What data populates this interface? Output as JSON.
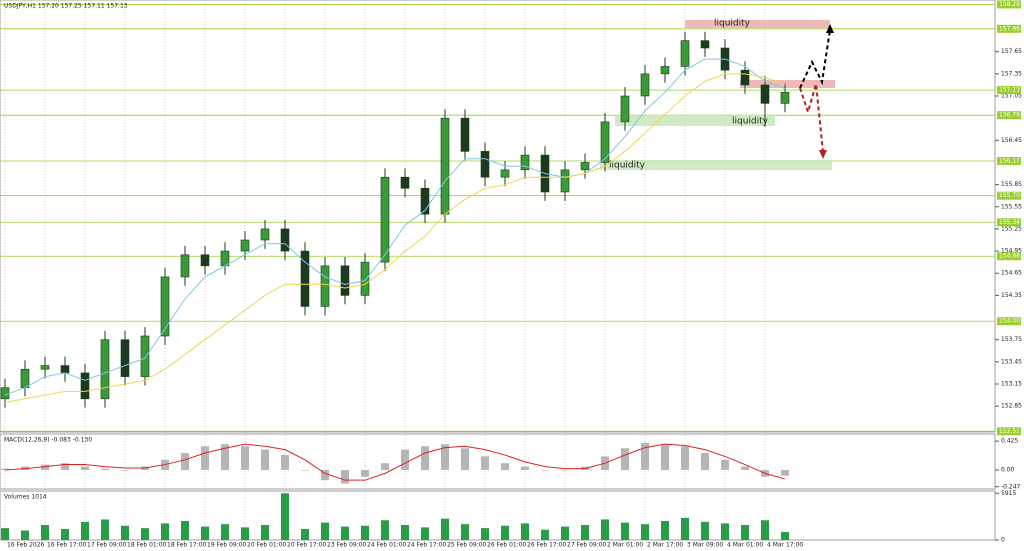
{
  "header": "USDJPY,H1  157.20 157.25 157.11 157.13",
  "zones": [
    "liquidity",
    "liquidity",
    "liquidity"
  ],
  "chart_data": [
    {
      "type": "candlestick",
      "categories": [
        "16 Feb 2026",
        null,
        "16 Feb 17:00",
        null,
        "17 Feb 09:00",
        null,
        "18 Feb 01:00",
        null,
        "18 Feb 17:00",
        null,
        "19 Feb 09:00",
        null,
        "20 Feb 01:00",
        null,
        "20 Feb 17:00",
        null,
        "23 Feb 09:00",
        null,
        "24 Feb 01:00",
        null,
        "24 Feb 17:00",
        null,
        "25 Feb 09:00",
        null,
        "26 Feb 01:00",
        null,
        "26 Feb 17:00",
        null,
        "27 Feb 09:00",
        null,
        "2 Mar 01:00",
        null,
        "2 Mar 17:00",
        null,
        "3 Mar 09:00",
        null,
        "4 Mar 01:00",
        null,
        "4 Mar 17:00",
        null
      ],
      "open": [
        152.95,
        153.1,
        153.35,
        153.4,
        153.3,
        152.95,
        153.75,
        153.25,
        153.8,
        154.6,
        154.9,
        154.75,
        154.95,
        155.1,
        155.25,
        154.95,
        154.2,
        154.75,
        154.35,
        154.8,
        155.95,
        155.8,
        155.45,
        156.75,
        156.3,
        155.95,
        156.05,
        156.25,
        155.75,
        156.05,
        156.15,
        156.7,
        157.05,
        157.35,
        157.45,
        157.8,
        157.7,
        157.4,
        157.2,
        156.95
      ],
      "high": [
        153.22,
        153.47,
        153.52,
        153.52,
        153.42,
        153.87,
        153.87,
        153.92,
        154.72,
        155.02,
        155.02,
        155.07,
        155.22,
        155.37,
        155.37,
        155.07,
        154.87,
        154.87,
        154.92,
        156.07,
        156.07,
        155.92,
        156.87,
        156.87,
        156.42,
        156.17,
        156.37,
        156.37,
        156.17,
        156.27,
        156.82,
        157.17,
        157.47,
        157.57,
        157.92,
        157.92,
        157.82,
        157.52,
        157.32,
        157.22
      ],
      "low": [
        152.83,
        152.98,
        153.23,
        153.18,
        152.83,
        152.83,
        153.13,
        153.13,
        153.68,
        154.48,
        154.63,
        154.63,
        154.83,
        154.98,
        154.83,
        154.08,
        154.08,
        154.23,
        154.23,
        154.68,
        155.68,
        155.33,
        155.33,
        156.18,
        155.83,
        155.83,
        155.93,
        155.63,
        155.63,
        155.93,
        156.03,
        156.58,
        156.93,
        157.23,
        157.33,
        157.58,
        157.28,
        157.08,
        156.63,
        156.83
      ],
      "close": [
        153.1,
        153.35,
        153.4,
        153.3,
        152.95,
        153.75,
        153.25,
        153.8,
        154.6,
        154.9,
        154.75,
        154.95,
        155.1,
        155.25,
        154.95,
        154.2,
        154.75,
        154.35,
        154.8,
        155.95,
        155.8,
        155.45,
        156.75,
        156.3,
        155.95,
        156.05,
        156.25,
        155.75,
        156.05,
        156.15,
        156.7,
        157.05,
        157.35,
        157.45,
        157.8,
        157.7,
        157.4,
        157.2,
        156.95,
        157.1
      ],
      "up_color": "#3a9a3a",
      "down_color": "#1e3a1e",
      "overlays": [
        {
          "color": "#7ec8e3",
          "values": [
            153.0,
            153.1,
            153.25,
            153.3,
            153.2,
            153.3,
            153.4,
            153.5,
            153.9,
            154.3,
            154.6,
            154.75,
            154.9,
            155.05,
            155.05,
            154.8,
            154.6,
            154.5,
            154.55,
            154.9,
            155.3,
            155.5,
            155.9,
            156.2,
            156.2,
            156.1,
            156.1,
            156.0,
            155.95,
            156.0,
            156.2,
            156.5,
            156.85,
            157.1,
            157.4,
            157.55,
            157.55,
            157.45,
            157.25,
            157.15
          ]
        },
        {
          "color": "#f2d649",
          "values": [
            152.9,
            152.95,
            153.0,
            153.05,
            153.05,
            153.1,
            153.15,
            153.2,
            153.35,
            153.55,
            153.75,
            153.95,
            154.15,
            154.35,
            154.5,
            154.5,
            154.5,
            154.45,
            154.5,
            154.7,
            154.95,
            155.15,
            155.45,
            155.65,
            155.8,
            155.85,
            155.95,
            155.95,
            155.95,
            156.0,
            156.1,
            156.3,
            156.55,
            156.8,
            157.05,
            157.25,
            157.35,
            157.35,
            157.3,
            157.2
          ]
        }
      ],
      "ylim": [
        152.5,
        158.35
      ],
      "yticks": [
        157.65,
        157.35,
        157.05,
        156.45,
        155.85,
        155.55,
        155.25,
        154.95,
        154.65,
        154.35,
        153.75,
        153.45,
        153.15,
        152.85
      ],
      "levels": [
        158.29,
        157.96,
        157.13,
        156.79,
        156.17,
        {
          "value": 155.7,
          "label": "155.70"
        },
        155.34,
        154.88,
        {
          "value": 154,
          "label": "154.00"
        },
        152.51
      ],
      "level_color": "#9acd32"
    },
    {
      "type": "bar",
      "title": "MACD(12,26,9) -0.083 -0.130",
      "color": "#b5b5b5",
      "values": [
        0.02,
        0.05,
        0.08,
        0.1,
        0.05,
        0.02,
        0.0,
        0.05,
        0.15,
        0.25,
        0.35,
        0.38,
        0.35,
        0.3,
        0.22,
        0.0,
        -0.15,
        -0.2,
        -0.1,
        0.1,
        0.3,
        0.35,
        0.38,
        0.32,
        0.2,
        0.1,
        0.05,
        0.0,
        0.0,
        0.05,
        0.2,
        0.32,
        0.4,
        0.38,
        0.35,
        0.25,
        0.15,
        0.05,
        -0.1,
        -0.083
      ],
      "signal": {
        "color": "#e02020",
        "values": [
          0.0,
          0.02,
          0.05,
          0.08,
          0.08,
          0.05,
          0.03,
          0.03,
          0.08,
          0.15,
          0.25,
          0.32,
          0.38,
          0.35,
          0.3,
          0.15,
          -0.05,
          -0.15,
          -0.15,
          -0.05,
          0.1,
          0.25,
          0.33,
          0.35,
          0.3,
          0.22,
          0.12,
          0.05,
          0.02,
          0.02,
          0.1,
          0.22,
          0.33,
          0.38,
          0.36,
          0.3,
          0.2,
          0.08,
          -0.05,
          -0.13
        ]
      },
      "ylim": [
        -0.28,
        0.53
      ],
      "yticks": [
        0.425,
        {
          "value": 0,
          "label": "0.00"
        },
        -0.247
      ]
    },
    {
      "type": "bar",
      "title": "Volumes 1014",
      "color": "#2a9d4a",
      "values": [
        1500,
        1200,
        1900,
        1400,
        2300,
        2600,
        1800,
        1500,
        2100,
        2400,
        1700,
        2000,
        1600,
        1900,
        5915,
        1400,
        2200,
        1700,
        1800,
        2500,
        1900,
        1600,
        2700,
        2000,
        1500,
        1800,
        2100,
        1300,
        1700,
        1900,
        2600,
        2200,
        2000,
        2400,
        2800,
        2300,
        2100,
        1900,
        2500,
        1014
      ],
      "ylim": [
        0,
        6200
      ],
      "yticks": [
        5915,
        0
      ]
    }
  ]
}
